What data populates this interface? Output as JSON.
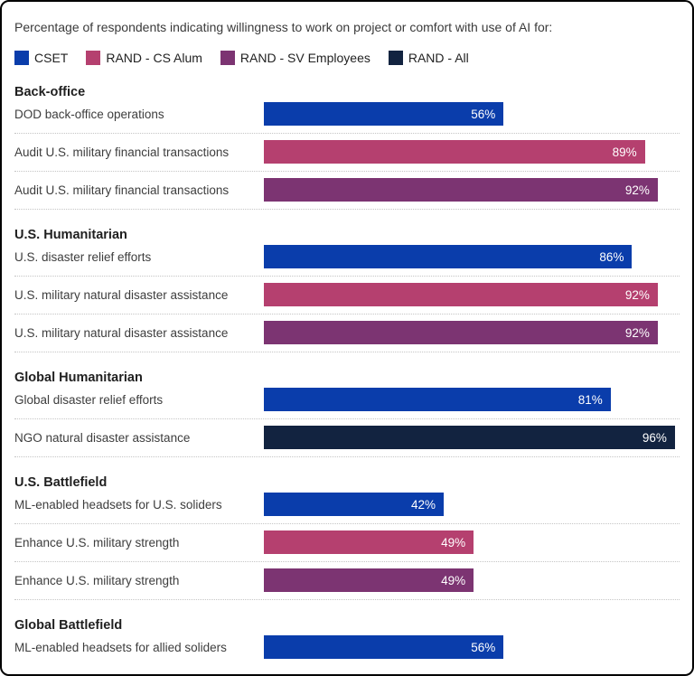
{
  "title": "Percentage of respondents indicating willingness to work on project or comfort with use of AI for:",
  "legend": [
    {
      "label": "CSET",
      "color": "#0a3dab"
    },
    {
      "label": "RAND - CS Alum",
      "color": "#b5406f"
    },
    {
      "label": "RAND - SV Employees",
      "color": "#7c3472"
    },
    {
      "label": "RAND - All",
      "color": "#122340"
    }
  ],
  "chart_data": {
    "type": "bar",
    "orientation": "horizontal",
    "title": "Percentage of respondents indicating willingness to work on project or comfort with use of AI for:",
    "value_unit": "%",
    "xlim": [
      0,
      100
    ],
    "legend_position": "top",
    "series_names": [
      "CSET",
      "RAND - CS Alum",
      "RAND - SV Employees",
      "RAND - All"
    ],
    "groups": [
      {
        "header": "Back-office",
        "rows": [
          {
            "label": "DOD back-office operations",
            "series": "CSET",
            "value": 56,
            "display": "56%"
          },
          {
            "label": "Audit U.S. military financial transactions",
            "series": "RAND - CS Alum",
            "value": 89,
            "display": "89%"
          },
          {
            "label": "Audit U.S. military financial transactions",
            "series": "RAND - SV Employees",
            "value": 92,
            "display": "92%"
          }
        ]
      },
      {
        "header": "U.S. Humanitarian",
        "rows": [
          {
            "label": "U.S. disaster relief efforts",
            "series": "CSET",
            "value": 86,
            "display": "86%"
          },
          {
            "label": "U.S. military natural disaster assistance",
            "series": "RAND - CS Alum",
            "value": 92,
            "display": "92%"
          },
          {
            "label": "U.S. military natural disaster assistance",
            "series": "RAND - SV Employees",
            "value": 92,
            "display": "92%"
          }
        ]
      },
      {
        "header": "Global Humanitarian",
        "rows": [
          {
            "label": "Global disaster relief efforts",
            "series": "CSET",
            "value": 81,
            "display": "81%"
          },
          {
            "label": "NGO natural disaster assistance",
            "series": "RAND - All",
            "value": 96,
            "display": "96%"
          }
        ]
      },
      {
        "header": "U.S. Battlefield",
        "rows": [
          {
            "label": "ML-enabled headsets for U.S. soliders",
            "series": "CSET",
            "value": 42,
            "display": "42%"
          },
          {
            "label": "Enhance U.S. military strength",
            "series": "RAND - CS Alum",
            "value": 49,
            "display": "49%"
          },
          {
            "label": "Enhance U.S. military strength",
            "series": "RAND - SV Employees",
            "value": 49,
            "display": "49%"
          }
        ]
      },
      {
        "header": "Global Battlefield",
        "rows": [
          {
            "label": "ML-enabled headsets for allied soliders",
            "series": "CSET",
            "value": 56,
            "display": "56%"
          }
        ]
      }
    ]
  }
}
